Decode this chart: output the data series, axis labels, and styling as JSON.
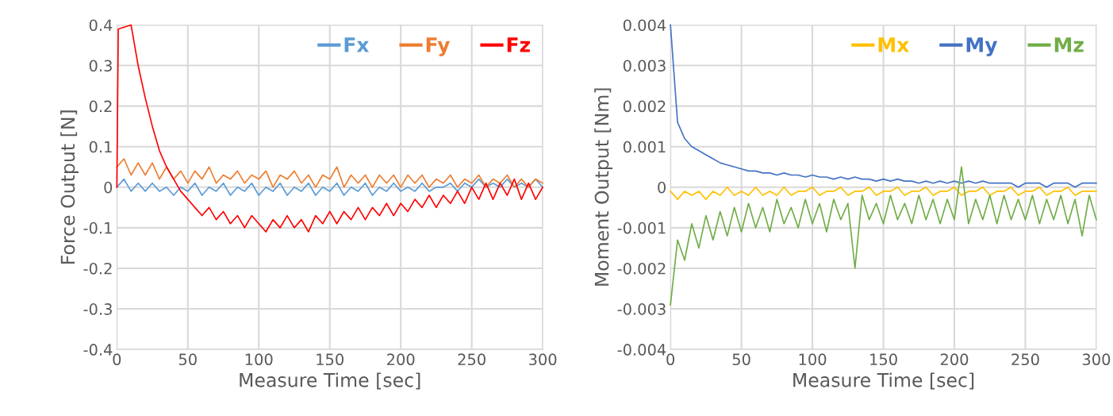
{
  "chart_data": [
    {
      "type": "line",
      "xlabel": "Measure Time [sec]",
      "ylabel": "Force Output [N]",
      "xlim": [
        0,
        300
      ],
      "xticks": [
        0,
        50,
        100,
        150,
        200,
        250,
        300
      ],
      "ylim": [
        -0.4,
        0.4
      ],
      "yticks": [
        -0.4,
        -0.3,
        -0.2,
        -0.1,
        0,
        0.1,
        0.2,
        0.3,
        0.4
      ],
      "grid": true,
      "legend": "top right",
      "marker": "none",
      "line_style": "solid",
      "x": [
        0,
        5,
        10,
        15,
        20,
        25,
        30,
        35,
        40,
        45,
        50,
        55,
        60,
        65,
        70,
        75,
        80,
        85,
        90,
        95,
        100,
        105,
        110,
        115,
        120,
        125,
        130,
        135,
        140,
        145,
        150,
        155,
        160,
        165,
        170,
        175,
        180,
        185,
        190,
        195,
        200,
        205,
        210,
        215,
        220,
        225,
        230,
        235,
        240,
        245,
        250,
        255,
        260,
        265,
        270,
        275,
        280,
        285,
        290,
        295,
        300
      ],
      "series": [
        {
          "name": "Fx",
          "color": "#5b9bd5",
          "values": [
            0.0,
            0.02,
            -0.01,
            0.01,
            -0.01,
            0.01,
            -0.01,
            0.0,
            -0.02,
            0.0,
            -0.01,
            0.01,
            -0.02,
            0.0,
            -0.01,
            0.01,
            -0.02,
            0.0,
            -0.01,
            0.01,
            -0.02,
            0.0,
            -0.01,
            0.01,
            -0.02,
            0.0,
            -0.01,
            0.01,
            -0.02,
            0.0,
            -0.01,
            0.01,
            -0.02,
            0.0,
            -0.01,
            0.01,
            -0.02,
            0.0,
            -0.01,
            0.01,
            -0.01,
            0.0,
            -0.01,
            0.01,
            -0.01,
            0.0,
            0.0,
            0.01,
            -0.01,
            0.01,
            0.0,
            0.02,
            0.0,
            0.01,
            0.0,
            0.02,
            0.0,
            0.01,
            0.0,
            0.02,
            0.0
          ]
        },
        {
          "name": "Fy",
          "color": "#ed7d31",
          "values": [
            0.05,
            0.07,
            0.03,
            0.06,
            0.03,
            0.06,
            0.02,
            0.05,
            0.02,
            0.04,
            0.01,
            0.04,
            0.02,
            0.05,
            0.01,
            0.03,
            0.02,
            0.04,
            0.01,
            0.03,
            0.02,
            0.04,
            0.0,
            0.03,
            0.02,
            0.04,
            0.01,
            0.03,
            0.0,
            0.03,
            0.02,
            0.05,
            0.0,
            0.03,
            0.01,
            0.03,
            0.0,
            0.03,
            0.01,
            0.03,
            0.0,
            0.03,
            0.01,
            0.03,
            0.0,
            0.02,
            0.01,
            0.03,
            0.0,
            0.02,
            0.01,
            0.03,
            0.0,
            0.02,
            0.01,
            0.03,
            0.0,
            0.02,
            0.0,
            0.02,
            0.01
          ]
        },
        {
          "name": "Fz",
          "color": "#ff0000",
          "x": [
            0,
            1,
            10,
            15,
            20,
            25,
            30,
            35,
            40,
            45,
            50,
            55,
            60,
            65,
            70,
            75,
            80,
            85,
            90,
            95,
            100,
            105,
            110,
            115,
            120,
            125,
            130,
            135,
            140,
            145,
            150,
            155,
            160,
            165,
            170,
            175,
            180,
            185,
            190,
            195,
            200,
            205,
            210,
            215,
            220,
            225,
            230,
            235,
            240,
            245,
            250,
            255,
            260,
            265,
            270,
            275,
            280,
            285,
            290,
            295,
            300
          ],
          "values": [
            0.0,
            0.39,
            0.4,
            0.3,
            0.22,
            0.15,
            0.09,
            0.05,
            0.02,
            -0.01,
            -0.03,
            -0.05,
            -0.07,
            -0.05,
            -0.08,
            -0.06,
            -0.09,
            -0.07,
            -0.1,
            -0.07,
            -0.09,
            -0.11,
            -0.08,
            -0.1,
            -0.07,
            -0.1,
            -0.08,
            -0.11,
            -0.07,
            -0.09,
            -0.06,
            -0.09,
            -0.06,
            -0.08,
            -0.05,
            -0.08,
            -0.05,
            -0.07,
            -0.04,
            -0.07,
            -0.04,
            -0.06,
            -0.03,
            -0.05,
            -0.02,
            -0.05,
            -0.02,
            -0.04,
            -0.01,
            -0.04,
            0.0,
            -0.03,
            0.01,
            -0.03,
            0.01,
            -0.02,
            0.02,
            -0.03,
            0.01,
            -0.03,
            0.0
          ]
        }
      ]
    },
    {
      "type": "line",
      "xlabel": "Measure Time [sec]",
      "ylabel": "Moment Output [Nm]",
      "xlim": [
        0,
        300
      ],
      "xticks": [
        0,
        50,
        100,
        150,
        200,
        250,
        300
      ],
      "ylim": [
        -0.004,
        0.004
      ],
      "yticks": [
        -0.004,
        -0.003,
        -0.002,
        -0.001,
        0,
        0.001,
        0.002,
        0.003,
        0.004
      ],
      "grid": true,
      "legend": "top right",
      "marker": "none",
      "line_style": "solid",
      "x": [
        0,
        5,
        10,
        15,
        20,
        25,
        30,
        35,
        40,
        45,
        50,
        55,
        60,
        65,
        70,
        75,
        80,
        85,
        90,
        95,
        100,
        105,
        110,
        115,
        120,
        125,
        130,
        135,
        140,
        145,
        150,
        155,
        160,
        165,
        170,
        175,
        180,
        185,
        190,
        195,
        200,
        205,
        210,
        215,
        220,
        225,
        230,
        235,
        240,
        245,
        250,
        255,
        260,
        265,
        270,
        275,
        280,
        285,
        290,
        295,
        300
      ],
      "series": [
        {
          "name": "Mx",
          "color": "#ffc000",
          "values": [
            -0.0001,
            -0.0003,
            -0.0001,
            -0.0002,
            -0.0001,
            -0.0003,
            -0.0001,
            -0.0002,
            0.0,
            -0.0002,
            -0.0001,
            -0.0002,
            0.0,
            -0.0002,
            -0.0001,
            -0.0002,
            0.0,
            -0.0002,
            -0.0001,
            -0.0001,
            0.0,
            -0.0002,
            -0.0001,
            -0.0001,
            0.0,
            -0.0002,
            -0.0001,
            -0.0001,
            0.0,
            -0.0002,
            -0.0001,
            -0.0001,
            0.0,
            -0.0002,
            -0.0001,
            -0.0001,
            0.0,
            -0.0002,
            -0.0001,
            -0.0001,
            0.0,
            -0.0002,
            -0.0001,
            -0.0001,
            0.0,
            -0.0002,
            -0.0001,
            -0.0001,
            0.0,
            -0.0002,
            -0.0001,
            -0.0001,
            0.0,
            -0.0002,
            -0.0001,
            -0.0001,
            0.0,
            -0.0002,
            -0.0001,
            -0.0001,
            -0.0001
          ]
        },
        {
          "name": "My",
          "color": "#4472c4",
          "values": [
            0.004,
            0.0016,
            0.0012,
            0.001,
            0.0009,
            0.0008,
            0.0007,
            0.0006,
            0.00055,
            0.0005,
            0.00045,
            0.0004,
            0.0004,
            0.00035,
            0.00035,
            0.0003,
            0.00035,
            0.0003,
            0.0003,
            0.00025,
            0.0003,
            0.00025,
            0.00025,
            0.0002,
            0.00025,
            0.0002,
            0.00025,
            0.0002,
            0.0002,
            0.00015,
            0.0002,
            0.00015,
            0.0002,
            0.00015,
            0.00015,
            0.0001,
            0.00015,
            0.0001,
            0.00015,
            0.0001,
            0.00015,
            0.0001,
            0.00015,
            0.0001,
            0.00015,
            0.0001,
            0.0001,
            0.0001,
            0.0001,
            0.0,
            0.0001,
            0.0001,
            0.0001,
            0.0,
            0.0001,
            0.0001,
            0.0001,
            0.0,
            0.0001,
            0.0001,
            0.0001
          ]
        },
        {
          "name": "Mz",
          "color": "#70ad47",
          "values": [
            -0.0029,
            -0.0013,
            -0.0018,
            -0.0009,
            -0.0015,
            -0.0007,
            -0.0013,
            -0.0006,
            -0.0012,
            -0.0005,
            -0.0011,
            -0.0004,
            -0.001,
            -0.0005,
            -0.0011,
            -0.0003,
            -0.0009,
            -0.0005,
            -0.001,
            -0.0003,
            -0.0009,
            -0.0004,
            -0.0011,
            -0.0003,
            -0.0008,
            -0.0004,
            -0.002,
            -0.0002,
            -0.0008,
            -0.0004,
            -0.0009,
            -0.0002,
            -0.0008,
            -0.0004,
            -0.0009,
            -0.0002,
            -0.0008,
            -0.0003,
            -0.0009,
            -0.0003,
            -0.0008,
            0.0005,
            -0.0009,
            -0.0003,
            -0.0008,
            -0.0002,
            -0.0009,
            -0.0002,
            -0.0008,
            -0.0003,
            -0.0008,
            -0.0002,
            -0.0009,
            -0.0003,
            -0.0008,
            -0.0002,
            -0.0009,
            -0.0003,
            -0.0012,
            -0.0002,
            -0.0008
          ]
        }
      ]
    }
  ]
}
